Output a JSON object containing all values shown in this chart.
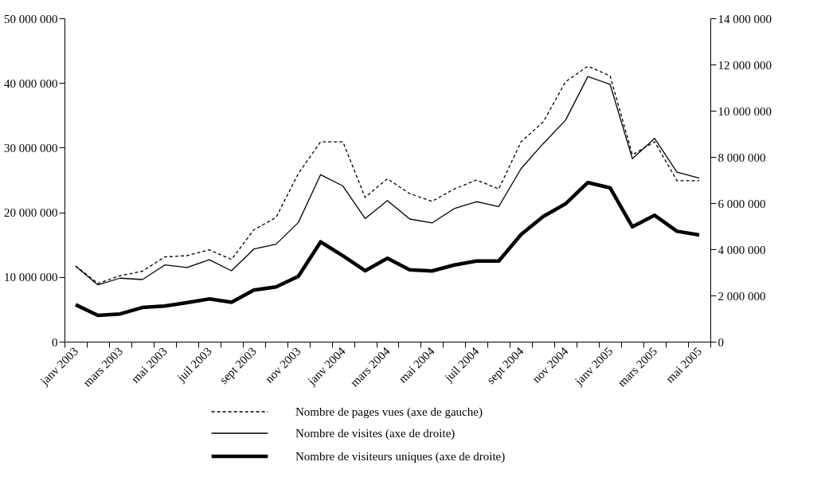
{
  "chart_data": {
    "type": "line",
    "categories": [
      "janv 2003",
      null,
      "mars 2003",
      null,
      "mai 2003",
      null,
      "juil 2003",
      null,
      "sept 2003",
      null,
      "nov 2003",
      null,
      "janv 2004",
      null,
      "mars 2004",
      null,
      "mai 2004",
      null,
      "juil 2004",
      null,
      "sept 2004",
      null,
      "nov 2004",
      null,
      "janv 2005",
      null,
      "mars 2005",
      null,
      "mai 2005"
    ],
    "series": [
      {
        "name": "Nombre de pages vues (axe de gauche)",
        "color": "#000000",
        "axis": "y",
        "line_style": "dashed",
        "values": [
          11700000,
          9000000,
          10200000,
          10900000,
          13100000,
          13300000,
          14200000,
          12700000,
          17300000,
          19200000,
          26000000,
          30900000,
          30900000,
          22300000,
          25200000,
          22900000,
          21700000,
          23600000,
          25000000,
          23600000,
          30900000,
          34000000,
          40200000,
          42600000,
          41100000,
          28900000,
          30900000,
          24900000,
          24900000
        ]
      },
      {
        "name": "Nombre de visites (axe de droite)",
        "color": "#000000",
        "axis": "y2",
        "line_style": "solid",
        "values": [
          3270000,
          2460000,
          2750000,
          2690000,
          3320000,
          3210000,
          3550000,
          3070000,
          4010000,
          4220000,
          5160000,
          7230000,
          6740000,
          5330000,
          6110000,
          5310000,
          5140000,
          5760000,
          6060000,
          5850000,
          7490000,
          8580000,
          9590000,
          11480000,
          11140000,
          7920000,
          8800000,
          7340000,
          7080000
        ]
      },
      {
        "name": "Nombre de visiteurs uniques (axe de droite)",
        "color": "#000000",
        "axis": "y2",
        "line_style": "solid",
        "values": [
          1600000,
          1140000,
          1200000,
          1480000,
          1540000,
          1690000,
          1850000,
          1710000,
          2230000,
          2370000,
          2830000,
          4320000,
          3720000,
          3070000,
          3610000,
          3110000,
          3060000,
          3320000,
          3490000,
          3490000,
          4640000,
          5420000,
          5970000,
          6890000,
          6660000,
          4970000,
          5470000,
          4780000,
          4620000
        ]
      }
    ],
    "ylim": [
      0,
      50000000
    ],
    "yticks": [
      0,
      {
        "value": 10000000,
        "label": "10 000 000"
      },
      {
        "value": 20000000,
        "label": "20 000 000"
      },
      {
        "value": 30000000,
        "label": "30 000 000"
      },
      {
        "value": 40000000,
        "label": "40 000 000"
      },
      {
        "value": 50000000,
        "label": "50 000 000"
      }
    ],
    "y2lim": [
      0,
      14000000
    ],
    "y2ticks": [
      0,
      {
        "value": 2000000,
        "label": "2 000 000"
      },
      {
        "value": 4000000,
        "label": "4 000 000"
      },
      {
        "value": 6000000,
        "label": "6 000 000"
      },
      {
        "value": 8000000,
        "label": "8 000 000"
      },
      {
        "value": 10000000,
        "label": "10 000 000"
      },
      {
        "value": 12000000,
        "label": "12 000 000"
      },
      {
        "value": 14000000,
        "label": "14 000 000"
      }
    ],
    "legend": "bottom",
    "grid": false
  }
}
